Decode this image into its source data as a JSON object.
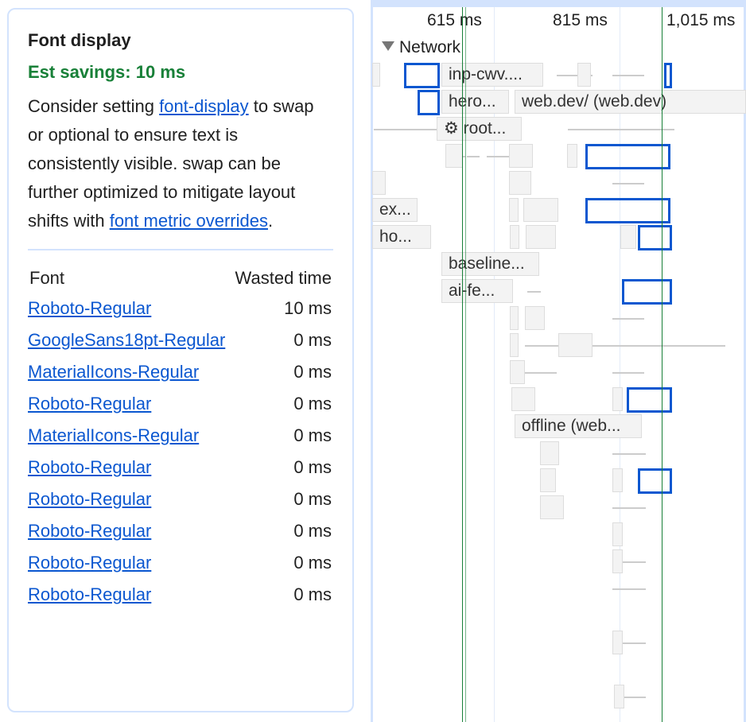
{
  "insight": {
    "title": "Font display",
    "savings": "Est savings: 10 ms",
    "desc_1": "Consider setting ",
    "link_font_display": "font-display",
    "desc_2": " to swap or optional to ensure text is consistently visible. swap can be further optimized to mitigate layout shifts with ",
    "link_metric_overrides": "font metric overrides",
    "desc_3": ".",
    "table": {
      "headers": [
        "Font",
        "Wasted time"
      ],
      "rows": [
        {
          "font": "Roboto-Regular",
          "wasted": "10 ms"
        },
        {
          "font": "GoogleSans18pt-Regular",
          "wasted": "0 ms"
        },
        {
          "font": "MaterialIcons-Regular",
          "wasted": "0 ms"
        },
        {
          "font": "Roboto-Regular",
          "wasted": "0 ms"
        },
        {
          "font": "MaterialIcons-Regular",
          "wasted": "0 ms"
        },
        {
          "font": "Roboto-Regular",
          "wasted": "0 ms"
        },
        {
          "font": "Roboto-Regular",
          "wasted": "0 ms"
        },
        {
          "font": "Roboto-Regular",
          "wasted": "0 ms"
        },
        {
          "font": "Roboto-Regular",
          "wasted": "0 ms"
        },
        {
          "font": "Roboto-Regular",
          "wasted": "0 ms"
        }
      ]
    }
  },
  "timeline": {
    "ticks": [
      "615 ms",
      "815 ms",
      "1,015 ms"
    ],
    "track": "Network",
    "labels": {
      "inp": "inp-cwv....",
      "hero": "hero...",
      "webdev": "web.dev/ (web.dev)",
      "root": "⚙ root...",
      "ex": "ex...",
      "ho": "ho...",
      "baseline": "baseline...",
      "aife": "ai-fe...",
      "offline": "offline (web..."
    },
    "colors": {
      "selected": "#0b57d0",
      "marker": "#188038",
      "savings": "#188038",
      "link": "#0b57d0"
    }
  }
}
